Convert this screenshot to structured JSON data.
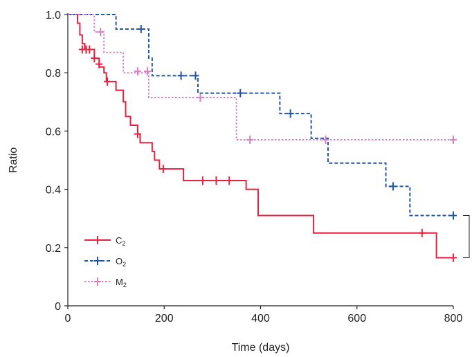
{
  "chart_data": {
    "type": "line",
    "step": true,
    "xlabel": "Time (days)",
    "ylabel": "Ratio",
    "xlim": [
      0,
      800
    ],
    "ylim": [
      0,
      1.0
    ],
    "xticks": [
      0,
      200,
      400,
      600,
      800
    ],
    "xtick_labels": [
      "0",
      "200",
      "400",
      "600",
      "800"
    ],
    "yticks": [
      0,
      0.2,
      0.4,
      0.6,
      0.8,
      1.0
    ],
    "ytick_labels": [
      "0",
      "0.2",
      "0.4",
      "0.6",
      "0.8",
      "1.0"
    ],
    "grid": false,
    "legend_position": "bottom-left",
    "bracket_between": [
      "O2",
      "C2"
    ],
    "series": [
      {
        "key": "C2",
        "name": "C",
        "subscript": "2",
        "color": "#e8213f",
        "dash": "solid",
        "steps": [
          [
            0,
            1.0
          ],
          [
            15,
            1.0
          ],
          [
            20,
            0.97
          ],
          [
            25,
            0.93
          ],
          [
            30,
            0.9
          ],
          [
            35,
            0.88
          ],
          [
            55,
            0.85
          ],
          [
            65,
            0.82
          ],
          [
            75,
            0.8
          ],
          [
            80,
            0.77
          ],
          [
            100,
            0.74
          ],
          [
            115,
            0.7
          ],
          [
            120,
            0.65
          ],
          [
            130,
            0.62
          ],
          [
            145,
            0.59
          ],
          [
            150,
            0.56
          ],
          [
            175,
            0.53
          ],
          [
            180,
            0.5
          ],
          [
            190,
            0.47
          ],
          [
            240,
            0.43
          ],
          [
            370,
            0.4
          ],
          [
            395,
            0.31
          ],
          [
            510,
            0.25
          ],
          [
            765,
            0.165
          ],
          [
            800,
            0.165
          ]
        ],
        "censored": [
          [
            30,
            0.88
          ],
          [
            38,
            0.88
          ],
          [
            45,
            0.88
          ],
          [
            55,
            0.85
          ],
          [
            65,
            0.83
          ],
          [
            82,
            0.77
          ],
          [
            145,
            0.59
          ],
          [
            198,
            0.47
          ],
          [
            280,
            0.43
          ],
          [
            308,
            0.43
          ],
          [
            335,
            0.43
          ],
          [
            735,
            0.25
          ],
          [
            800,
            0.165
          ]
        ]
      },
      {
        "key": "O2",
        "name": "O",
        "subscript": "2",
        "color": "#1f56a8",
        "dash": "dashed",
        "steps": [
          [
            0,
            1.0
          ],
          [
            100,
            0.95
          ],
          [
            168,
            0.85
          ],
          [
            175,
            0.79
          ],
          [
            270,
            0.73
          ],
          [
            440,
            0.66
          ],
          [
            505,
            0.575
          ],
          [
            540,
            0.49
          ],
          [
            660,
            0.41
          ],
          [
            710,
            0.31
          ],
          [
            800,
            0.31
          ]
        ],
        "censored": [
          [
            152,
            0.95
          ],
          [
            235,
            0.79
          ],
          [
            265,
            0.79
          ],
          [
            358,
            0.73
          ],
          [
            462,
            0.66
          ],
          [
            675,
            0.41
          ],
          [
            800,
            0.31
          ]
        ]
      },
      {
        "key": "M2",
        "name": "M",
        "subscript": "2",
        "color": "#d77fc4",
        "dash": "dotted",
        "steps": [
          [
            0,
            1.0
          ],
          [
            55,
            0.94
          ],
          [
            75,
            0.87
          ],
          [
            115,
            0.8
          ],
          [
            168,
            0.715
          ],
          [
            350,
            0.57
          ],
          [
            800,
            0.57
          ]
        ],
        "censored": [
          [
            68,
            0.94
          ],
          [
            145,
            0.805
          ],
          [
            165,
            0.805
          ],
          [
            275,
            0.715
          ],
          [
            378,
            0.57
          ],
          [
            535,
            0.57
          ],
          [
            800,
            0.57
          ]
        ]
      }
    ]
  }
}
